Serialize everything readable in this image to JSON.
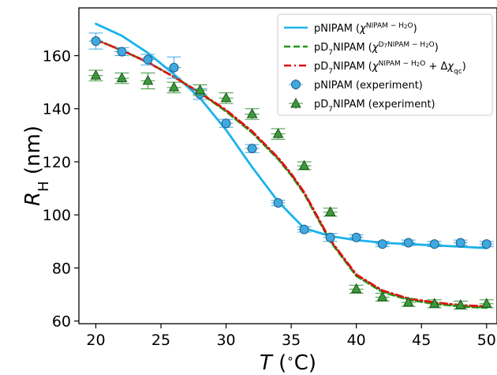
{
  "chart_data": {
    "type": "line",
    "xlabel": "T (°C)",
    "ylabel": "R_H (nm)",
    "xlim": [
      18.7,
      50.8
    ],
    "ylim": [
      59,
      178
    ],
    "xticks": [
      20,
      25,
      30,
      35,
      40,
      45,
      50
    ],
    "yticks": [
      60,
      80,
      100,
      120,
      140,
      160
    ],
    "grid": false,
    "legend_placement": "top-right",
    "colors": {
      "pNIPAM": "#1ab3ec",
      "pD7_model": "#1a9a1a",
      "pD7_corrected": "#e01010",
      "marker_blue": "#3fa9e0",
      "marker_green": "#3a9a3a"
    },
    "series": [
      {
        "name": "pNIPAM (χ^{NIPAM − H2O})",
        "kind": "line",
        "style": "solid",
        "color": "#1ab3ec",
        "x": [
          20,
          22,
          24,
          26,
          28,
          30,
          32,
          34,
          36,
          38,
          40,
          42,
          44,
          46,
          48,
          50
        ],
        "y": [
          172,
          167.5,
          161,
          153,
          144,
          132,
          118,
          105,
          95,
          92,
          90.5,
          89.5,
          89,
          88.5,
          88,
          87.5
        ]
      },
      {
        "name": "pD7NIPAM (χ^{D7NIPAM − H2O})",
        "kind": "line",
        "style": "dashed",
        "color": "#1a9a1a",
        "x": [
          20,
          22,
          24,
          26,
          28,
          30,
          32,
          34,
          35,
          36,
          37,
          38,
          40,
          42,
          44,
          46,
          48,
          50
        ],
        "y": [
          166,
          162,
          157.5,
          152,
          146,
          139,
          131,
          121,
          115,
          108,
          99,
          90,
          77,
          71,
          68,
          66.5,
          65.5,
          65
        ]
      },
      {
        "name": "pD7NIPAM (χ^{NIPAM − H2O} + Δχqc)",
        "kind": "line",
        "style": "dashdot",
        "color": "#e01010",
        "x": [
          20,
          22,
          24,
          26,
          28,
          30,
          32,
          34,
          35,
          36,
          37,
          38,
          40,
          42,
          44,
          46,
          48,
          50
        ],
        "y": [
          166,
          162,
          157.5,
          152,
          146,
          139.5,
          131.5,
          121.5,
          115.5,
          108.5,
          99.5,
          90.5,
          77.5,
          71.5,
          68.5,
          67,
          66,
          65.5
        ]
      },
      {
        "name": "pNIPAM (experiment)",
        "kind": "scatter",
        "marker": "circle",
        "color": "#3fa9e0",
        "x": [
          20,
          22,
          24,
          26,
          28,
          30,
          32,
          34,
          36,
          38,
          40,
          42,
          44,
          46,
          48,
          50
        ],
        "y": [
          165.5,
          161.5,
          158.5,
          155.5,
          145.5,
          134.5,
          125,
          104.5,
          94.5,
          91.5,
          91.5,
          89,
          89.5,
          89,
          89.5,
          89
        ],
        "err": [
          3,
          1.5,
          2,
          4,
          2,
          1.5,
          1.5,
          1,
          1,
          1.5,
          1,
          1,
          1,
          1,
          1,
          1
        ]
      },
      {
        "name": "pD7NIPAM (experiment)",
        "kind": "scatter",
        "marker": "triangle",
        "color": "#3a9a3a",
        "x": [
          20,
          22,
          24,
          26,
          28,
          30,
          32,
          34,
          36,
          38,
          40,
          42,
          44,
          46,
          48,
          50
        ],
        "y": [
          152.5,
          151.5,
          150.5,
          148,
          147,
          144,
          138,
          130.5,
          118.5,
          101,
          72,
          69,
          67,
          66.5,
          66,
          66.5
        ],
        "err": [
          2,
          2,
          3,
          2,
          2,
          2,
          2,
          2,
          1.5,
          1.5,
          1.5,
          1.5,
          1.5,
          1.5,
          1.5,
          1.5
        ]
      }
    ]
  }
}
